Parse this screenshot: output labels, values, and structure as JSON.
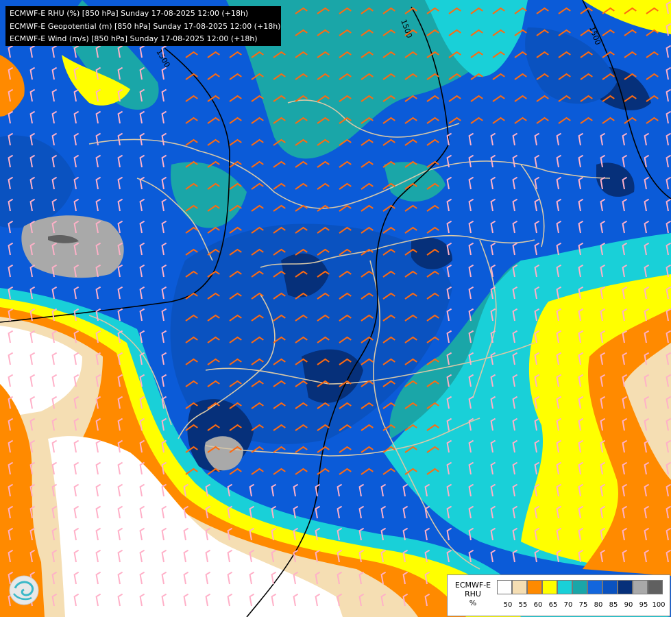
{
  "header": {
    "lines": [
      "ECMWF-E RHU (%) [850 hPa] Sunday 17-08-2025 12:00 (+18h)",
      "ECMWF-E Geopotential (m) [850 hPa] Sunday 17-08-2025 12:00 (+18h)",
      "ECMWF-E Wind (m/s) [850 hPa] Sunday 17-08-2025 12:00 (+18h)"
    ]
  },
  "contours": {
    "labels": [
      "1500",
      "1500",
      "1500"
    ]
  },
  "legend": {
    "model": "ECMWF-E",
    "variable": "RHU",
    "unit": "%",
    "ticks": [
      "50",
      "55",
      "60",
      "65",
      "70",
      "75",
      "80",
      "85",
      "90",
      "95",
      "100"
    ],
    "colors": [
      "#ffffff",
      "#f5deb3",
      "#ff8a00",
      "#ffff00",
      "#19d0d8",
      "#1aa6a8",
      "#1266dd",
      "#0a52c0",
      "#06307a",
      "#a9a9a9",
      "#606060"
    ]
  },
  "colors": {
    "rhu_below_50": "#ffffff",
    "rhu_50": "#f5deb3",
    "rhu_55": "#ff8a00",
    "rhu_60": "#ffff00",
    "rhu_65": "#19d0d8",
    "rhu_70": "#1aa6a8",
    "rhu_75": "#1266dd",
    "rhu_80": "#0a52c0",
    "rhu_85": "#06307a",
    "rhu_90": "#a9a9a9",
    "wind_barb_orange": "#ff6a10",
    "wind_barb_pink": "#ffb0c8",
    "border": "#d8c8a8",
    "contour": "#000000"
  },
  "icons": [
    "ecmwf-logo-icon",
    "wind-barb-icon"
  ]
}
